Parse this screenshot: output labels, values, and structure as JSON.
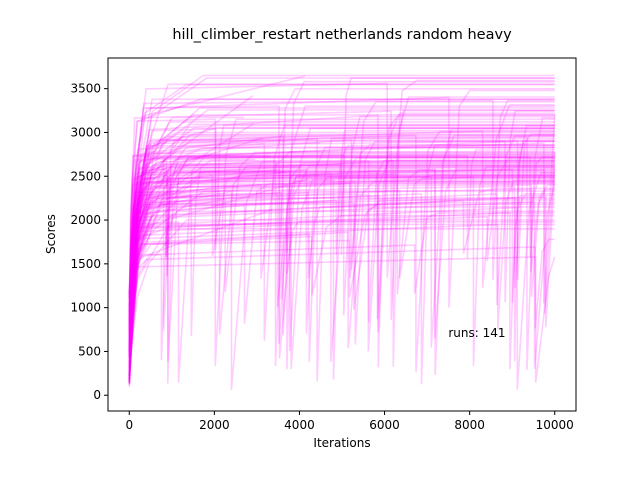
{
  "chart_data": {
    "type": "line",
    "title": "hill_climber_restart netherlands random heavy",
    "xlabel": "Iterations",
    "ylabel": "Scores",
    "xlim": [
      -500,
      10500
    ],
    "ylim": [
      -180,
      3850
    ],
    "xticks": [
      0,
      2000,
      4000,
      6000,
      8000,
      10000
    ],
    "yticks": [
      0,
      500,
      1000,
      1500,
      2000,
      2500,
      3000,
      3500
    ],
    "grid": false,
    "legend": "none",
    "series_color": "#ff00ff",
    "series_alpha": 0.2,
    "run_count": 141,
    "annotation": {
      "text": "runs: 141",
      "x": 7500,
      "y": 620
    },
    "final_scores": [
      3650,
      3620,
      3580,
      3550,
      3480,
      3420,
      3380,
      3350,
      3300,
      3280,
      3250,
      3220,
      3200,
      3180,
      3150,
      3120,
      3100,
      3080,
      3050,
      3040,
      3020,
      3000,
      2980,
      2960,
      2950,
      2930,
      2900,
      2880,
      2860,
      2850,
      2830,
      2800,
      2780,
      2760,
      2750,
      2730,
      2720,
      2700,
      2690,
      2680,
      2660,
      2650,
      2640,
      2620,
      2610,
      2600,
      2590,
      2580,
      2560,
      2550,
      2540,
      2520,
      2500,
      2490,
      2480,
      2460,
      2450,
      2440,
      2420,
      2400,
      2380,
      2360,
      2350,
      2330,
      2300,
      2280,
      2250,
      2230,
      2200,
      2180,
      2150,
      2120,
      2100,
      2080,
      2050,
      2000,
      1980,
      1950,
      1900,
      1780,
      1580
    ]
  }
}
